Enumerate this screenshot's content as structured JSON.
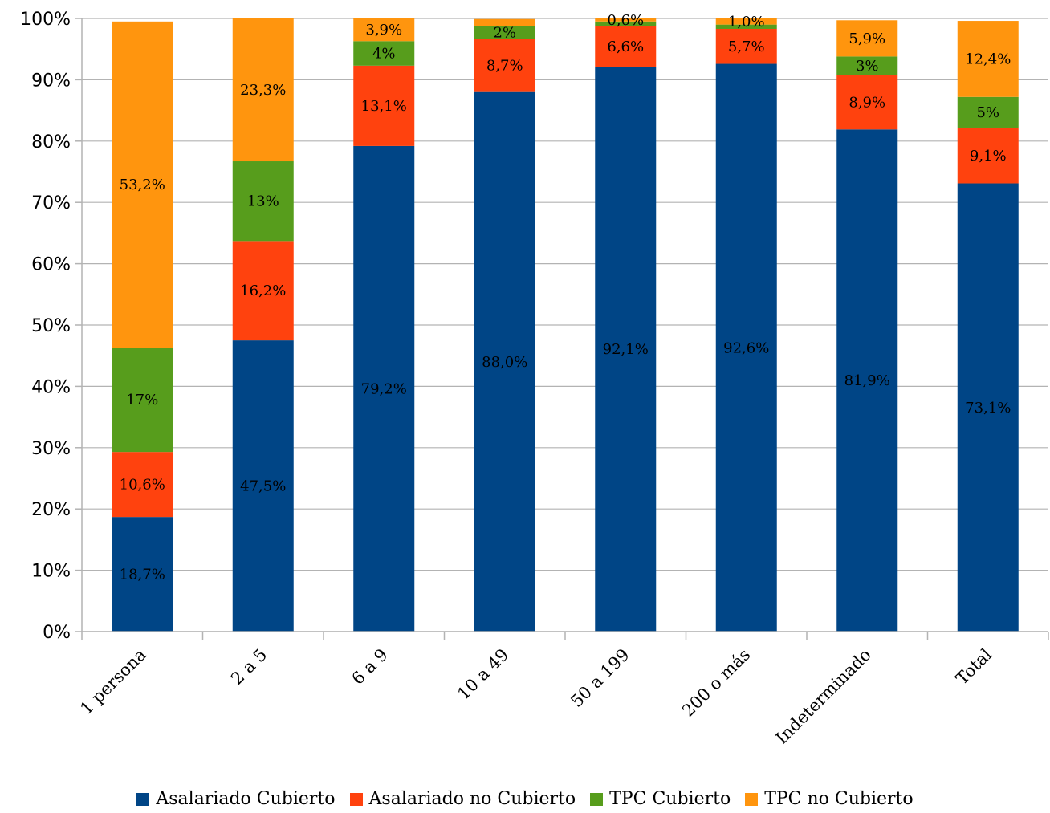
{
  "colors": {
    "Asalariado Cubierto": "#004586",
    "Asalariado no Cubierto": "#ff420e",
    "TPC Cubierto": "#579d1c",
    "TPC no Cubierto": "#ff950e",
    "grid": "#b3b3b3",
    "axis": "#b3b3b3"
  },
  "chart_data": {
    "type": "bar",
    "stacked": true,
    "title": "",
    "xlabel": "",
    "ylabel": "",
    "ylim": [
      0,
      100
    ],
    "yticks": [
      "0%",
      "10%",
      "20%",
      "30%",
      "40%",
      "50%",
      "60%",
      "70%",
      "80%",
      "90%",
      "100%"
    ],
    "grid": true,
    "legend_position": "bottom",
    "categories": [
      "1 persona",
      "2 a 5",
      "6 a 9",
      "10 a 49",
      "50 a 199",
      "200 o más",
      "Indeterminado",
      "Total"
    ],
    "series": [
      {
        "name": "Asalariado Cubierto",
        "values": [
          18.7,
          47.5,
          79.2,
          88.0,
          92.1,
          92.6,
          81.9,
          73.1
        ],
        "labels": [
          "18,7%",
          "47,5%",
          "79,2%",
          "88,0%",
          "92,1%",
          "92,6%",
          "81,9%",
          "73,1%"
        ]
      },
      {
        "name": "Asalariado no Cubierto",
        "values": [
          10.6,
          16.2,
          13.1,
          8.7,
          6.6,
          5.7,
          8.9,
          9.1
        ],
        "labels": [
          "10,6%",
          "16,2%",
          "13,1%",
          "8,7%",
          "6,6%",
          "5,7%",
          "8,9%",
          "9,1%"
        ]
      },
      {
        "name": "TPC Cubierto",
        "values": [
          17.0,
          13.0,
          4.0,
          2.0,
          0.8,
          0.7,
          3.0,
          5.0
        ],
        "labels": [
          "17%",
          "13%",
          "4%",
          "2%",
          "",
          "",
          "3%",
          "5%"
        ]
      },
      {
        "name": "TPC no Cubierto",
        "values": [
          53.2,
          23.3,
          3.9,
          1.2,
          0.6,
          1.0,
          5.9,
          12.4
        ],
        "labels": [
          "53,2%",
          "23,3%",
          "3,9%",
          "",
          "0,6%",
          "1,0%",
          "5,9%",
          "12,4%"
        ]
      }
    ]
  }
}
